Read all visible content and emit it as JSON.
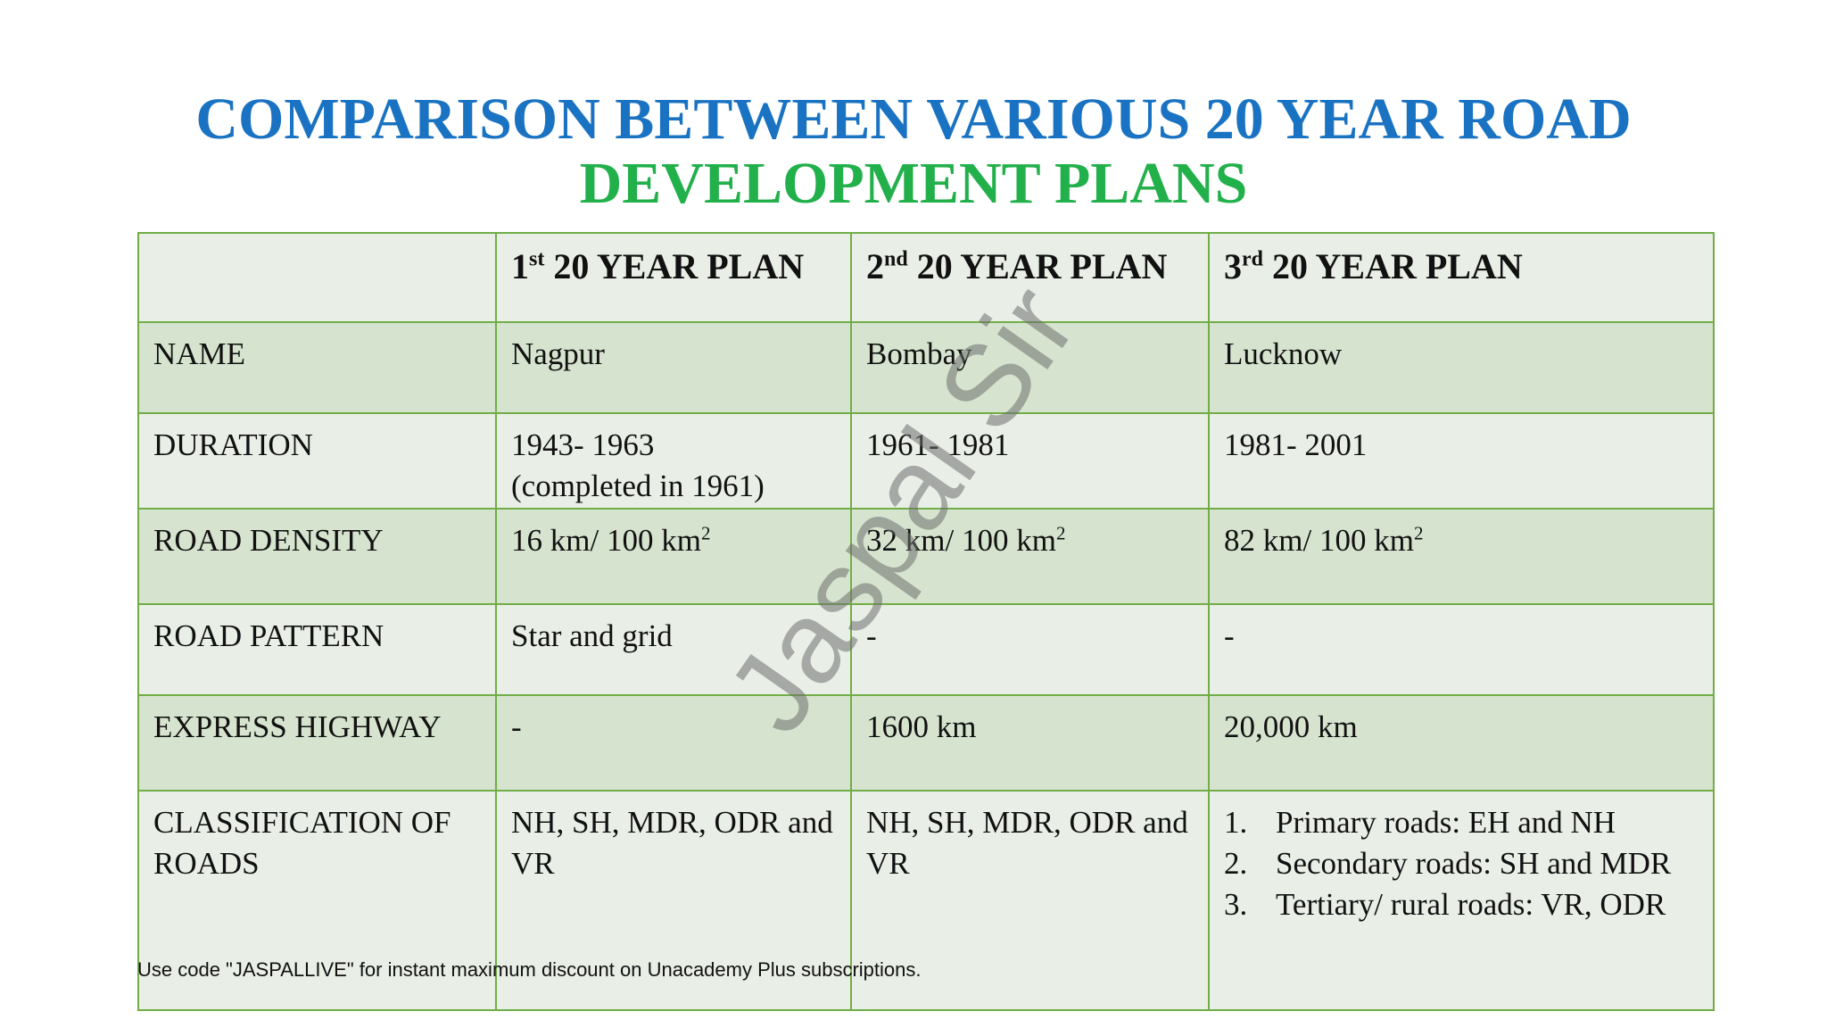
{
  "title": {
    "line1": "COMPARISON BETWEEN VARIOUS 20 YEAR ROAD",
    "line2": "DEVELOPMENT PLANS"
  },
  "table": {
    "header": [
      {
        "ordinal": "1",
        "suffix": "st",
        "rest": "20 YEAR PLAN"
      },
      {
        "ordinal": "2",
        "suffix": "nd",
        "rest": "20 YEAR PLAN"
      },
      {
        "ordinal": "3",
        "suffix": "rd",
        "rest": "20 YEAR PLAN"
      }
    ],
    "rows": {
      "name": {
        "label": "NAME",
        "cells": [
          "Nagpur",
          "Bombay",
          "Lucknow"
        ]
      },
      "duration": {
        "label": "DURATION",
        "cells": [
          [
            "1943- 1963",
            "(completed in 1961)"
          ],
          [
            "1961- 1981"
          ],
          [
            "1981- 2001"
          ]
        ]
      },
      "density": {
        "label": "ROAD DENSITY",
        "cells": [
          {
            "text": "16 km/ 100 km",
            "sup": "2"
          },
          {
            "text": "32 km/ 100 km",
            "sup": "2"
          },
          {
            "text": "82 km/ 100 km",
            "sup": "2"
          }
        ]
      },
      "pattern": {
        "label": "ROAD PATTERN",
        "cells": [
          "Star and grid",
          "-",
          "-"
        ]
      },
      "express": {
        "label": "EXPRESS HIGHWAY",
        "cells": [
          "-",
          "1600 km",
          "20,000 km"
        ]
      },
      "classification": {
        "label": "CLASSIFICATION OF ROADS",
        "cells": [
          "NH, SH, MDR, ODR and VR",
          "NH, SH, MDR, ODR and VR",
          [
            {
              "number": "1.",
              "text": "Primary roads: EH and NH"
            },
            {
              "number": "2.",
              "text": "Secondary roads: SH and MDR"
            },
            {
              "number": "3.",
              "text": "Tertiary/ rural roads: VR, ODR"
            }
          ]
        ]
      }
    }
  },
  "watermark": "Jaspal Sir",
  "footer": "Use code \"JASPALLIVE\" for instant maximum discount on Unacademy Plus subscriptions."
}
